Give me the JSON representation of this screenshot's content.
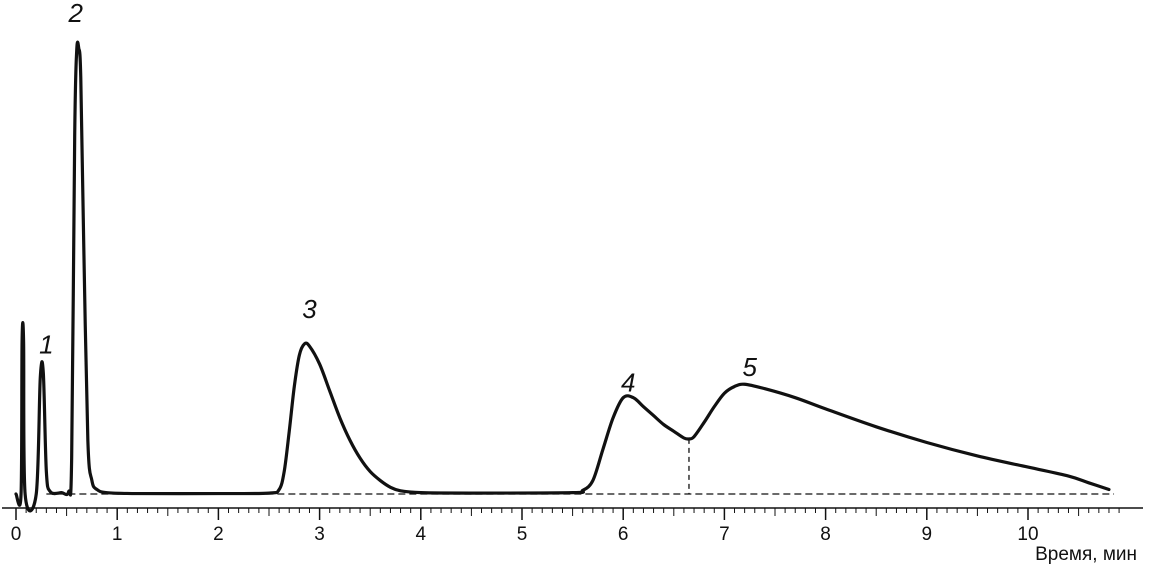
{
  "chart_data": {
    "type": "line",
    "title": "",
    "xlabel": "Время, мин",
    "ylabel": "",
    "xlim": [
      0,
      11
    ],
    "ylim": [
      0,
      100
    ],
    "grid": false,
    "x_ticks": [
      "0",
      "1",
      "2",
      "3",
      "4",
      "5",
      "6",
      "7",
      "8",
      "9",
      "10"
    ],
    "colors": {
      "line": "#111111",
      "baseline": "#111111"
    },
    "series": [
      {
        "values": [
          [
            0.0,
            0
          ],
          [
            0.05,
            0
          ],
          [
            0.06,
            34
          ],
          [
            0.075,
            34
          ],
          [
            0.09,
            0
          ],
          [
            0.2,
            0
          ],
          [
            0.24,
            26
          ],
          [
            0.27,
            27
          ],
          [
            0.3,
            5
          ],
          [
            0.34,
            0.5
          ],
          [
            0.45,
            0.3
          ],
          [
            0.52,
            0.5
          ],
          [
            0.55,
            8
          ],
          [
            0.58,
            80
          ],
          [
            0.6,
            99
          ],
          [
            0.62,
            99.5
          ],
          [
            0.64,
            93
          ],
          [
            0.67,
            55
          ],
          [
            0.71,
            12
          ],
          [
            0.75,
            3
          ],
          [
            0.8,
            1
          ],
          [
            0.9,
            0.3
          ],
          [
            1.2,
            0.1
          ],
          [
            2.0,
            0.1
          ],
          [
            2.5,
            0.2
          ],
          [
            2.6,
            1
          ],
          [
            2.65,
            5
          ],
          [
            2.7,
            14
          ],
          [
            2.75,
            24
          ],
          [
            2.8,
            31
          ],
          [
            2.85,
            33.5
          ],
          [
            2.9,
            33
          ],
          [
            3.0,
            29
          ],
          [
            3.1,
            23
          ],
          [
            3.2,
            17
          ],
          [
            3.3,
            12
          ],
          [
            3.4,
            8
          ],
          [
            3.5,
            5
          ],
          [
            3.6,
            3
          ],
          [
            3.7,
            1.5
          ],
          [
            3.8,
            0.7
          ],
          [
            4.0,
            0.3
          ],
          [
            4.5,
            0.2
          ],
          [
            5.5,
            0.3
          ],
          [
            5.6,
            0.8
          ],
          [
            5.7,
            3
          ],
          [
            5.8,
            10
          ],
          [
            5.9,
            17
          ],
          [
            6.0,
            21.5
          ],
          [
            6.1,
            21.5
          ],
          [
            6.2,
            19.5
          ],
          [
            6.3,
            17.5
          ],
          [
            6.4,
            15.5
          ],
          [
            6.5,
            14
          ],
          [
            6.6,
            12.5
          ],
          [
            6.65,
            12.3
          ],
          [
            6.7,
            12.8
          ],
          [
            6.8,
            16
          ],
          [
            6.9,
            19.5
          ],
          [
            7.0,
            22.5
          ],
          [
            7.1,
            24
          ],
          [
            7.2,
            24.5
          ],
          [
            7.4,
            23.5
          ],
          [
            7.7,
            21.5
          ],
          [
            8.0,
            19
          ],
          [
            8.5,
            15
          ],
          [
            9.0,
            11.5
          ],
          [
            9.5,
            8.5
          ],
          [
            10.0,
            6
          ],
          [
            10.4,
            4
          ],
          [
            10.6,
            2.5
          ],
          [
            10.8,
            1
          ]
        ]
      }
    ],
    "baseline": {
      "style": "dashed",
      "from_x": 0.3,
      "to_x": 10.85,
      "y": 0
    },
    "marker_line": {
      "style": "dashed",
      "x": 6.65,
      "y_top": 12.3
    },
    "annotations": [
      {
        "text": "1",
        "x": 0.3,
        "y": 30
      },
      {
        "text": "2",
        "x": 0.59,
        "y": 104
      },
      {
        "text": "3",
        "x": 2.9,
        "y": 38
      },
      {
        "text": "4",
        "x": 6.05,
        "y": 21.5
      },
      {
        "text": "5",
        "x": 7.25,
        "y": 25
      }
    ]
  }
}
